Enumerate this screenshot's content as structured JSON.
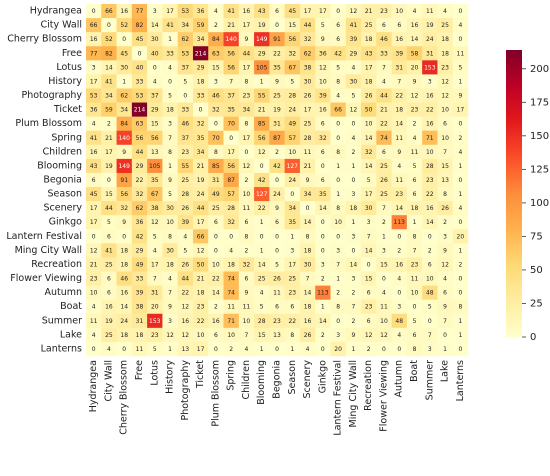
{
  "chart_data": {
    "type": "heatmap",
    "labels": [
      "Hydrangea",
      "City Wall",
      "Cherry Blossom",
      "Free",
      "Lotus",
      "History",
      "Photography",
      "Ticket",
      "Plum Blossom",
      "Spring",
      "Children",
      "Blooming",
      "Begonia",
      "Season",
      "Scenery",
      "Ginkgo",
      "Lantern Festival",
      "Ming City Wall",
      "Recreation",
      "Flower Viewing",
      "Autumn",
      "Boat",
      "Summer",
      "Lake",
      "Lanterns"
    ],
    "values": [
      [
        0,
        66,
        16,
        77,
        3,
        17,
        53,
        36,
        4,
        41,
        16,
        43,
        6,
        45,
        17,
        17,
        0,
        12,
        21,
        23,
        10,
        4,
        11,
        4,
        0
      ],
      [
        66,
        0,
        52,
        82,
        14,
        41,
        34,
        59,
        2,
        21,
        17,
        19,
        0,
        15,
        44,
        5,
        6,
        41,
        25,
        6,
        6,
        16,
        19,
        25,
        4
      ],
      [
        16,
        52,
        0,
        45,
        30,
        1,
        62,
        34,
        84,
        140,
        9,
        149,
        91,
        56,
        32,
        9,
        6,
        39,
        18,
        46,
        16,
        14,
        24,
        18,
        0
      ],
      [
        77,
        82,
        45,
        0,
        40,
        33,
        53,
        214,
        63,
        56,
        44,
        29,
        22,
        32,
        62,
        36,
        42,
        29,
        43,
        33,
        39,
        58,
        31,
        18,
        11
      ],
      [
        3,
        14,
        30,
        40,
        0,
        4,
        37,
        29,
        15,
        56,
        17,
        105,
        35,
        67,
        38,
        12,
        5,
        4,
        17,
        7,
        31,
        20,
        153,
        23,
        5
      ],
      [
        17,
        41,
        1,
        33,
        4,
        0,
        5,
        18,
        3,
        7,
        8,
        1,
        9,
        5,
        30,
        10,
        8,
        30,
        18,
        4,
        7,
        9,
        3,
        12,
        1
      ],
      [
        53,
        34,
        62,
        53,
        37,
        5,
        0,
        33,
        46,
        37,
        23,
        55,
        25,
        28,
        26,
        39,
        4,
        5,
        26,
        44,
        22,
        12,
        16,
        12,
        9
      ],
      [
        36,
        59,
        34,
        214,
        29,
        18,
        33,
        0,
        32,
        35,
        34,
        21,
        19,
        24,
        17,
        16,
        66,
        12,
        50,
        21,
        18,
        23,
        22,
        10,
        17
      ],
      [
        4,
        2,
        84,
        63,
        15,
        3,
        46,
        32,
        0,
        70,
        8,
        85,
        31,
        49,
        25,
        6,
        0,
        0,
        10,
        22,
        14,
        2,
        16,
        6,
        0
      ],
      [
        41,
        21,
        140,
        56,
        56,
        7,
        37,
        35,
        70,
        0,
        17,
        56,
        87,
        57,
        28,
        32,
        0,
        4,
        14,
        74,
        11,
        4,
        71,
        10,
        2
      ],
      [
        16,
        17,
        9,
        44,
        13,
        8,
        23,
        34,
        8,
        17,
        0,
        12,
        2,
        10,
        11,
        6,
        8,
        2,
        32,
        6,
        9,
        11,
        10,
        7,
        4
      ],
      [
        43,
        19,
        149,
        29,
        105,
        1,
        55,
        21,
        85,
        56,
        12,
        0,
        42,
        127,
        21,
        0,
        1,
        1,
        14,
        25,
        4,
        5,
        28,
        15,
        1
      ],
      [
        6,
        0,
        91,
        22,
        35,
        9,
        25,
        19,
        31,
        87,
        2,
        42,
        0,
        24,
        9,
        6,
        0,
        0,
        5,
        26,
        11,
        6,
        23,
        13,
        0
      ],
      [
        45,
        15,
        56,
        32,
        67,
        5,
        28,
        24,
        49,
        57,
        10,
        127,
        24,
        0,
        34,
        35,
        1,
        3,
        17,
        25,
        23,
        6,
        22,
        8,
        1
      ],
      [
        17,
        44,
        32,
        62,
        38,
        30,
        26,
        44,
        25,
        28,
        11,
        22,
        9,
        34,
        0,
        14,
        8,
        18,
        30,
        7,
        14,
        18,
        16,
        26,
        4
      ],
      [
        17,
        5,
        9,
        36,
        12,
        10,
        39,
        17,
        6,
        32,
        6,
        1,
        6,
        35,
        14,
        0,
        10,
        1,
        3,
        2,
        113,
        1,
        14,
        2,
        0
      ],
      [
        0,
        6,
        0,
        42,
        5,
        8,
        4,
        66,
        0,
        0,
        8,
        0,
        0,
        1,
        8,
        0,
        0,
        3,
        7,
        1,
        0,
        8,
        0,
        3,
        20
      ],
      [
        12,
        41,
        18,
        29,
        4,
        30,
        5,
        12,
        0,
        4,
        2,
        1,
        0,
        3,
        18,
        0,
        3,
        0,
        14,
        3,
        2,
        7,
        2,
        9,
        1
      ],
      [
        21,
        25,
        18,
        49,
        17,
        18,
        26,
        50,
        10,
        18,
        32,
        14,
        5,
        17,
        30,
        3,
        7,
        14,
        0,
        15,
        16,
        23,
        6,
        12,
        2
      ],
      [
        23,
        6,
        46,
        33,
        7,
        4,
        44,
        21,
        22,
        74,
        6,
        25,
        26,
        25,
        7,
        2,
        1,
        3,
        15,
        0,
        4,
        11,
        10,
        4,
        0
      ],
      [
        10,
        6,
        16,
        39,
        31,
        7,
        22,
        18,
        14,
        74,
        9,
        4,
        11,
        23,
        14,
        113,
        2,
        2,
        6,
        4,
        0,
        10,
        48,
        6,
        0
      ],
      [
        4,
        16,
        14,
        38,
        20,
        9,
        12,
        23,
        2,
        11,
        11,
        5,
        6,
        6,
        18,
        1,
        8,
        7,
        23,
        11,
        3,
        0,
        5,
        9,
        8
      ],
      [
        11,
        19,
        24,
        31,
        153,
        3,
        16,
        22,
        16,
        71,
        10,
        28,
        23,
        22,
        16,
        14,
        0,
        2,
        6,
        10,
        48,
        5,
        0,
        7,
        1
      ],
      [
        4,
        25,
        18,
        18,
        23,
        12,
        12,
        10,
        6,
        10,
        7,
        15,
        13,
        8,
        26,
        2,
        3,
        9,
        12,
        12,
        4,
        6,
        7,
        0,
        1
      ],
      [
        0,
        4,
        0,
        11,
        5,
        1,
        13,
        17,
        0,
        2,
        4,
        1,
        0,
        1,
        4,
        0,
        20,
        1,
        2,
        0,
        0,
        8,
        3,
        1,
        0
      ]
    ],
    "colormap": [
      "#ffffcc",
      "#ffeda0",
      "#fed976",
      "#feb24c",
      "#fd8d3c",
      "#fc4e2a",
      "#e31a1c",
      "#bd0026",
      "#800026"
    ],
    "zlim": [
      0,
      214
    ],
    "zticks": [
      0,
      25,
      50,
      75,
      100,
      125,
      150,
      175,
      200
    ]
  }
}
